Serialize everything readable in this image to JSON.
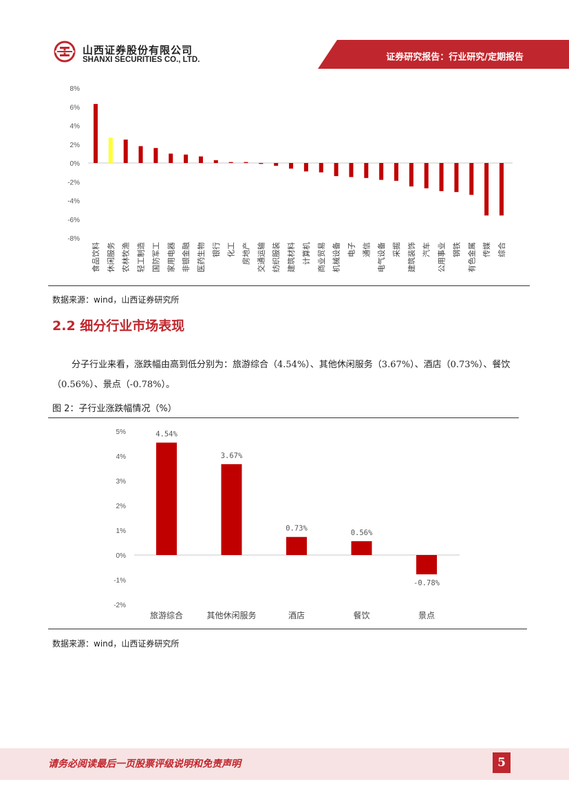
{
  "header": {
    "company_cn": "山西证券股份有限公司",
    "company_en": "SHANXI SECURITIES CO., LTD.",
    "report_type": "证券研究报告：行业研究/定期报告",
    "brand_color": "#c0262d",
    "logo": "shanxi-securities-logo"
  },
  "section": {
    "title": "2.2 细分行业市场表现",
    "paragraph": "分子行业来看，涨跌幅由高到低分别为：旅游综合（4.54%）、其他休闲服务（3.67%）、酒店（0.73%）、餐饮（0.56%）、景点（-0.78%）。",
    "figure2_title": "图 2：子行业涨跌幅情况（%）"
  },
  "sources": {
    "figure1": "数据来源：wind，山西证券研究所",
    "figure2": "数据来源：wind，山西证券研究所"
  },
  "footer": {
    "notice": "请务必阅读最后一页股票评级说明和免责声明",
    "page_number": "5"
  },
  "chart_data": [
    {
      "type": "bar",
      "categories": [
        "食品饮料",
        "休闲服务",
        "农林牧渔",
        "轻工制造",
        "国防军工",
        "家用电器",
        "非银金融",
        "医药生物",
        "银行",
        "化工",
        "房地产",
        "交通运输",
        "纺织服装",
        "建筑材料",
        "计算机",
        "商业贸易",
        "机械设备",
        "电子",
        "通信",
        "电气设备",
        "采掘",
        "建筑装饰",
        "汽车",
        "公用事业",
        "钢铁",
        "有色金属",
        "传媒",
        "综合"
      ],
      "values": [
        6.3,
        2.7,
        2.5,
        1.8,
        1.6,
        1.0,
        0.9,
        0.7,
        0.3,
        0.1,
        0.1,
        -0.1,
        -0.3,
        -0.6,
        -0.9,
        -1.0,
        -1.4,
        -1.5,
        -1.6,
        -1.8,
        -1.9,
        -2.5,
        -2.7,
        -3.0,
        -3.1,
        -3.4,
        -5.6,
        -5.6
      ],
      "highlight_category": "休闲服务",
      "bar_color": "#c00000",
      "highlight_color": "#ffff33",
      "ylim": [
        -8,
        8
      ],
      "yticks": [
        "8%",
        "6%",
        "4%",
        "2%",
        "0%",
        "-2%",
        "-4%",
        "-6%",
        "-8%"
      ],
      "title": "",
      "xlabel": "",
      "ylabel": "",
      "grid": false,
      "legend": "none"
    },
    {
      "type": "bar",
      "categories": [
        "旅游综合",
        "其他休闲服务",
        "酒店",
        "餐饮",
        "景点"
      ],
      "values": [
        4.54,
        3.67,
        0.73,
        0.56,
        -0.78
      ],
      "data_labels": [
        "4.54%",
        "3.67%",
        "0.73%",
        "0.56%",
        "-0.78%"
      ],
      "bar_color": "#c00000",
      "ylim": [
        -2,
        5
      ],
      "yticks": [
        "5%",
        "4%",
        "3%",
        "2%",
        "1%",
        "0%",
        "-1%",
        "-2%"
      ],
      "title": "",
      "xlabel": "",
      "ylabel": "",
      "grid": false,
      "legend": "none"
    }
  ]
}
